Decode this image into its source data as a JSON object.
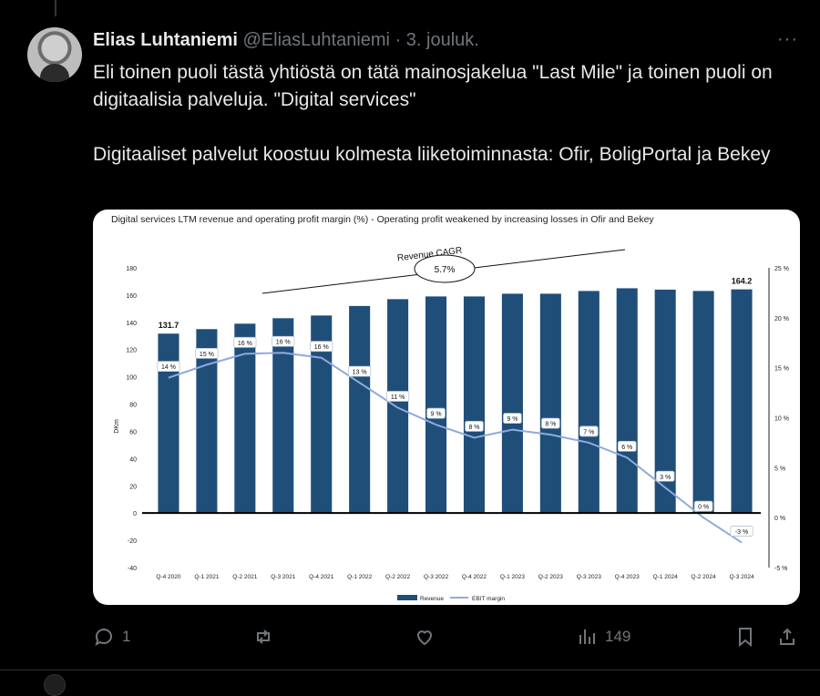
{
  "post": {
    "author_name": "Elias Luhtaniemi",
    "handle": "@EliasLuhtaniemi",
    "separator": "·",
    "time": "3. jouluk.",
    "more_icon": "···",
    "text_lines": [
      "Eli toinen puoli tästä yhtiöstä on tätä mainosjakelua \"Last Mile\" ja toinen puoli on digitaalisia palveluja. \"Digital services\"",
      "Digitaaliset palvelut koostuu kolmesta liiketoiminnasta: Ofir, BoligPortal ja Bekey"
    ]
  },
  "actions": {
    "reply_count": "1",
    "views_count": "149"
  },
  "colors": {
    "bar": "#1f4e79",
    "line": "#8faadc",
    "text_secondary": "#71767b"
  },
  "chart_data": {
    "type": "bar",
    "title": "Digital services LTM revenue and operating profit margin (%) - Operating profit weakened by increasing losses in Ofir and Bekey",
    "ylabel": "DKm",
    "ylim": [
      -40,
      180
    ],
    "yticks": [
      "180",
      "160",
      "140",
      "120",
      "100",
      "80",
      "60",
      "40",
      "20",
      "0",
      "-20",
      "-40"
    ],
    "y2lim": [
      -5,
      25
    ],
    "y2ticks": [
      "25 %",
      "20 %",
      "15 %",
      "10 %",
      "5 %",
      "0 %",
      "-5 %"
    ],
    "categories": [
      "Q-4 2020",
      "Q-1 2021",
      "Q-2 2021",
      "Q-3 2021",
      "Q-4 2021",
      "Q-1 2022",
      "Q-2 2022",
      "Q-3 2022",
      "Q-4 2022",
      "Q-1 2023",
      "Q-2 2023",
      "Q-3 2023",
      "Q-4 2023",
      "Q-1 2024",
      "Q-2 2024",
      "Q-3 2024"
    ],
    "series": [
      {
        "name": "Revenue",
        "type": "bar",
        "values": [
          131.7,
          135,
          139,
          143,
          145,
          152,
          157,
          159,
          159,
          161,
          161,
          163,
          165,
          164,
          163,
          164.2
        ]
      },
      {
        "name": "EBIT margin",
        "type": "line",
        "axis": "right",
        "values": [
          14,
          15.3,
          16.4,
          16.5,
          16,
          13.5,
          11,
          9.3,
          8,
          8.8,
          8.3,
          7.5,
          6,
          3,
          0,
          -2.5
        ]
      }
    ],
    "bar_labels": [
      {
        "index": 0,
        "text": "131.7"
      },
      {
        "index": 15,
        "text": "164.2"
      }
    ],
    "line_labels": [
      "14 %",
      "15 %",
      "16 %",
      "16 %",
      "16 %",
      "13 %",
      "11 %",
      "9 %",
      "8 %",
      "9 %",
      "8 %",
      "7 %",
      "6 %",
      "3 %",
      "0 %",
      "-3 %"
    ],
    "annotation": {
      "label": "Revenue CAGR",
      "value": "5.7%"
    },
    "legend": [
      "Revenue",
      "EBIT margin"
    ],
    "legend_position": "bottom"
  }
}
